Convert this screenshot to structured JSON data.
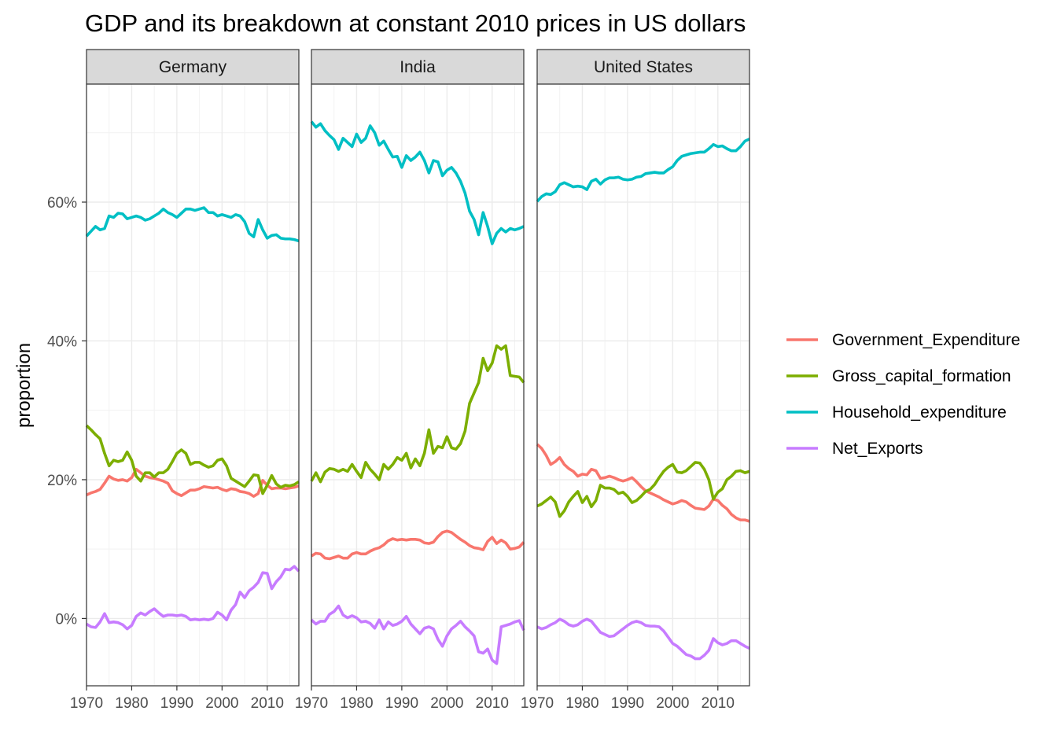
{
  "chart_data": {
    "type": "line",
    "title": "GDP and its breakdown at constant 2010 prices in US dollars",
    "xlabel": "",
    "ylabel": "proportion",
    "xlim": [
      1970,
      2017
    ],
    "ylim": [
      -0.097,
      0.77
    ],
    "x_ticks": [
      1970,
      1980,
      1990,
      2000,
      2010
    ],
    "y_ticks": [
      0,
      0.2,
      0.4,
      0.6
    ],
    "y_tick_labels": [
      "0%",
      "20%",
      "40%",
      "60%"
    ],
    "x_tick_labels": [
      "1970",
      "1980",
      "1990",
      "2000",
      "2010"
    ],
    "grid": true,
    "legend_position": "right",
    "series_names": [
      "Government_Expenditure",
      "Gross_capital_formation",
      "Household_expenditure",
      "Net_Exports"
    ],
    "colors": {
      "Government_Expenditure": "#F8766D",
      "Gross_capital_formation": "#7CAE00",
      "Household_expenditure": "#00BFC4",
      "Net_Exports": "#C77CFF"
    },
    "x": [
      1970,
      1971,
      1972,
      1973,
      1974,
      1975,
      1976,
      1977,
      1978,
      1979,
      1980,
      1981,
      1982,
      1983,
      1984,
      1985,
      1986,
      1987,
      1988,
      1989,
      1990,
      1991,
      1992,
      1993,
      1994,
      1995,
      1996,
      1997,
      1998,
      1999,
      2000,
      2001,
      2002,
      2003,
      2004,
      2005,
      2006,
      2007,
      2008,
      2009,
      2010,
      2011,
      2012,
      2013,
      2014,
      2015,
      2016,
      2017
    ],
    "panels": [
      {
        "name": "Germany",
        "series": [
          {
            "name": "Government_Expenditure",
            "values": [
              0.178,
              0.181,
              0.183,
              0.186,
              0.195,
              0.205,
              0.201,
              0.199,
              0.2,
              0.198,
              0.203,
              0.215,
              0.21,
              0.205,
              0.203,
              0.202,
              0.2,
              0.198,
              0.195,
              0.184,
              0.18,
              0.177,
              0.181,
              0.185,
              0.185,
              0.187,
              0.19,
              0.189,
              0.188,
              0.189,
              0.186,
              0.184,
              0.187,
              0.186,
              0.183,
              0.182,
              0.18,
              0.176,
              0.18,
              0.199,
              0.192,
              0.187,
              0.188,
              0.188,
              0.187,
              0.188,
              0.189,
              0.191
            ]
          },
          {
            "name": "Gross_capital_formation",
            "values": [
              0.278,
              0.272,
              0.265,
              0.259,
              0.238,
              0.22,
              0.228,
              0.226,
              0.228,
              0.24,
              0.228,
              0.205,
              0.198,
              0.21,
              0.21,
              0.204,
              0.21,
              0.21,
              0.215,
              0.226,
              0.238,
              0.243,
              0.238,
              0.222,
              0.225,
              0.225,
              0.221,
              0.218,
              0.22,
              0.228,
              0.23,
              0.22,
              0.202,
              0.198,
              0.194,
              0.19,
              0.198,
              0.207,
              0.206,
              0.18,
              0.192,
              0.206,
              0.194,
              0.189,
              0.192,
              0.191,
              0.193,
              0.197
            ]
          },
          {
            "name": "Household_expenditure",
            "values": [
              0.551,
              0.558,
              0.565,
              0.56,
              0.562,
              0.58,
              0.578,
              0.584,
              0.583,
              0.576,
              0.578,
              0.58,
              0.578,
              0.574,
              0.576,
              0.58,
              0.584,
              0.59,
              0.585,
              0.582,
              0.578,
              0.584,
              0.59,
              0.59,
              0.588,
              0.59,
              0.592,
              0.585,
              0.585,
              0.58,
              0.582,
              0.58,
              0.578,
              0.582,
              0.58,
              0.572,
              0.555,
              0.55,
              0.575,
              0.56,
              0.548,
              0.552,
              0.553,
              0.548,
              0.547,
              0.547,
              0.546,
              0.544
            ]
          },
          {
            "name": "Net_Exports",
            "values": [
              -0.008,
              -0.012,
              -0.013,
              -0.005,
              0.007,
              -0.006,
              -0.005,
              -0.006,
              -0.009,
              -0.015,
              -0.01,
              0.003,
              0.008,
              0.005,
              0.01,
              0.014,
              0.008,
              0.003,
              0.005,
              0.005,
              0.004,
              0.005,
              0.003,
              -0.002,
              -0.001,
              -0.002,
              -0.001,
              -0.002,
              0.0,
              0.009,
              0.005,
              -0.002,
              0.012,
              0.02,
              0.038,
              0.03,
              0.04,
              0.045,
              0.052,
              0.066,
              0.065,
              0.043,
              0.053,
              0.06,
              0.071,
              0.07,
              0.075,
              0.068
            ]
          }
        ]
      },
      {
        "name": "India",
        "series": [
          {
            "name": "Government_Expenditure",
            "values": [
              0.09,
              0.094,
              0.093,
              0.087,
              0.086,
              0.088,
              0.09,
              0.087,
              0.087,
              0.093,
              0.095,
              0.093,
              0.093,
              0.097,
              0.1,
              0.102,
              0.106,
              0.112,
              0.115,
              0.113,
              0.114,
              0.113,
              0.114,
              0.114,
              0.113,
              0.109,
              0.108,
              0.11,
              0.118,
              0.124,
              0.126,
              0.124,
              0.119,
              0.114,
              0.11,
              0.105,
              0.102,
              0.101,
              0.099,
              0.111,
              0.117,
              0.108,
              0.113,
              0.109,
              0.1,
              0.101,
              0.103,
              0.11
            ]
          },
          {
            "name": "Gross_capital_formation",
            "values": [
              0.198,
              0.21,
              0.197,
              0.211,
              0.216,
              0.215,
              0.212,
              0.215,
              0.212,
              0.222,
              0.212,
              0.203,
              0.225,
              0.215,
              0.208,
              0.2,
              0.222,
              0.215,
              0.222,
              0.232,
              0.228,
              0.238,
              0.217,
              0.23,
              0.22,
              0.238,
              0.272,
              0.238,
              0.248,
              0.246,
              0.262,
              0.246,
              0.244,
              0.252,
              0.27,
              0.31,
              0.325,
              0.34,
              0.375,
              0.357,
              0.368,
              0.393,
              0.388,
              0.393,
              0.35,
              0.349,
              0.348,
              0.34
            ]
          },
          {
            "name": "Household_expenditure",
            "values": [
              0.716,
              0.708,
              0.713,
              0.703,
              0.696,
              0.69,
              0.676,
              0.692,
              0.686,
              0.68,
              0.698,
              0.686,
              0.692,
              0.71,
              0.7,
              0.682,
              0.688,
              0.676,
              0.665,
              0.666,
              0.65,
              0.667,
              0.66,
              0.665,
              0.672,
              0.66,
              0.642,
              0.66,
              0.658,
              0.638,
              0.646,
              0.65,
              0.642,
              0.63,
              0.613,
              0.587,
              0.575,
              0.553,
              0.585,
              0.565,
              0.54,
              0.555,
              0.562,
              0.557,
              0.562,
              0.56,
              0.562,
              0.565
            ]
          },
          {
            "name": "Net_Exports",
            "values": [
              -0.002,
              -0.008,
              -0.004,
              -0.004,
              0.006,
              0.01,
              0.018,
              0.005,
              0.001,
              0.004,
              0.001,
              -0.005,
              -0.004,
              -0.007,
              -0.014,
              -0.002,
              -0.015,
              -0.005,
              -0.01,
              -0.008,
              -0.004,
              0.003,
              -0.008,
              -0.015,
              -0.022,
              -0.014,
              -0.012,
              -0.015,
              -0.03,
              -0.04,
              -0.025,
              -0.015,
              -0.01,
              -0.004,
              -0.012,
              -0.018,
              -0.025,
              -0.048,
              -0.05,
              -0.044,
              -0.06,
              -0.065,
              -0.012,
              -0.01,
              -0.008,
              -0.005,
              -0.003,
              -0.017
            ]
          }
        ]
      },
      {
        "name": "United States",
        "series": [
          {
            "name": "Government_Expenditure",
            "values": [
              0.251,
              0.245,
              0.235,
              0.222,
              0.226,
              0.232,
              0.222,
              0.216,
              0.212,
              0.205,
              0.208,
              0.207,
              0.215,
              0.213,
              0.202,
              0.203,
              0.205,
              0.203,
              0.2,
              0.198,
              0.2,
              0.203,
              0.197,
              0.19,
              0.184,
              0.181,
              0.178,
              0.175,
              0.171,
              0.168,
              0.165,
              0.167,
              0.17,
              0.168,
              0.163,
              0.159,
              0.158,
              0.157,
              0.162,
              0.172,
              0.17,
              0.163,
              0.158,
              0.15,
              0.145,
              0.142,
              0.142,
              0.14
            ]
          },
          {
            "name": "Gross_capital_formation",
            "values": [
              0.162,
              0.165,
              0.17,
              0.175,
              0.168,
              0.147,
              0.155,
              0.168,
              0.176,
              0.183,
              0.167,
              0.176,
              0.161,
              0.17,
              0.192,
              0.188,
              0.188,
              0.186,
              0.18,
              0.182,
              0.176,
              0.167,
              0.17,
              0.176,
              0.183,
              0.186,
              0.193,
              0.203,
              0.212,
              0.218,
              0.222,
              0.211,
              0.21,
              0.213,
              0.219,
              0.225,
              0.224,
              0.215,
              0.2,
              0.172,
              0.182,
              0.187,
              0.2,
              0.205,
              0.212,
              0.213,
              0.21,
              0.212
            ]
          },
          {
            "name": "Household_expenditure",
            "values": [
              0.601,
              0.608,
              0.612,
              0.611,
              0.615,
              0.625,
              0.628,
              0.625,
              0.622,
              0.623,
              0.622,
              0.618,
              0.63,
              0.633,
              0.626,
              0.632,
              0.635,
              0.635,
              0.636,
              0.633,
              0.632,
              0.633,
              0.636,
              0.637,
              0.641,
              0.642,
              0.643,
              0.642,
              0.642,
              0.647,
              0.651,
              0.66,
              0.666,
              0.668,
              0.67,
              0.671,
              0.672,
              0.672,
              0.677,
              0.683,
              0.68,
              0.681,
              0.677,
              0.674,
              0.674,
              0.68,
              0.688,
              0.691
            ]
          },
          {
            "name": "Net_Exports",
            "values": [
              -0.012,
              -0.015,
              -0.013,
              -0.009,
              -0.006,
              -0.001,
              -0.004,
              -0.009,
              -0.011,
              -0.009,
              -0.004,
              -0.001,
              -0.004,
              -0.012,
              -0.02,
              -0.023,
              -0.026,
              -0.025,
              -0.02,
              -0.015,
              -0.01,
              -0.006,
              -0.004,
              -0.006,
              -0.01,
              -0.011,
              -0.011,
              -0.012,
              -0.018,
              -0.027,
              -0.036,
              -0.04,
              -0.046,
              -0.052,
              -0.054,
              -0.058,
              -0.058,
              -0.053,
              -0.046,
              -0.029,
              -0.035,
              -0.038,
              -0.036,
              -0.032,
              -0.032,
              -0.036,
              -0.04,
              -0.043
            ]
          }
        ]
      }
    ]
  }
}
